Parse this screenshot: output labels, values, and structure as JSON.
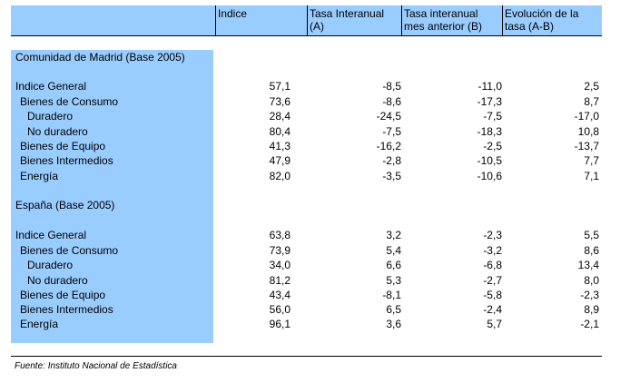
{
  "header": {
    "col1": "Indice",
    "col2": "Tasa Interanual (A)",
    "col3": "Tasa interanual mes anterior (B)",
    "col4": "Evolución de la tasa (A-B)"
  },
  "sections": [
    {
      "title": "Comunidad de Madrid (Base 2005)",
      "rows": [
        {
          "label": "Indice General",
          "v1": "57,1",
          "v2": "-8,5",
          "v3": "-11,0",
          "v4": "2,5"
        },
        {
          "label": "Bienes de Consumo",
          "v1": "73,6",
          "v2": "-8,6",
          "v3": "-17,3",
          "v4": "8,7"
        },
        {
          "label": "Duradero",
          "v1": "28,4",
          "v2": "-24,5",
          "v3": "-7,5",
          "v4": "-17,0"
        },
        {
          "label": "No duradero",
          "v1": "80,4",
          "v2": "-7,5",
          "v3": "-18,3",
          "v4": "10,8"
        },
        {
          "label": "Bienes de Equipo",
          "v1": "41,3",
          "v2": "-16,2",
          "v3": "-2,5",
          "v4": "-13,7"
        },
        {
          "label": "Bienes Intermedios",
          "v1": "47,9",
          "v2": "-2,8",
          "v3": "-10,5",
          "v4": "7,7"
        },
        {
          "label": "Energía",
          "v1": "82,0",
          "v2": "-3,5",
          "v3": "-10,6",
          "v4": "7,1"
        }
      ]
    },
    {
      "title": "España (Base 2005)",
      "rows": [
        {
          "label": "Indice General",
          "v1": "63,8",
          "v2": "3,2",
          "v3": "-2,3",
          "v4": "5,5"
        },
        {
          "label": "Bienes de Consumo",
          "v1": "73,9",
          "v2": "5,4",
          "v3": "-3,2",
          "v4": "8,6"
        },
        {
          "label": "Duradero",
          "v1": "34,0",
          "v2": "6,6",
          "v3": "-6,8",
          "v4": "13,4"
        },
        {
          "label": "No duradero",
          "v1": "81,2",
          "v2": "5,3",
          "v3": "-2,7",
          "v4": "8,0"
        },
        {
          "label": "Bienes de Equipo",
          "v1": "43,4",
          "v2": "-8,1",
          "v3": "-5,8",
          "v4": "-2,3"
        },
        {
          "label": "Bienes Intermedios",
          "v1": "56,0",
          "v2": "6,5",
          "v3": "-2,4",
          "v4": "8,9"
        },
        {
          "label": "Energía",
          "v1": "96,1",
          "v2": "3,6",
          "v3": "5,7",
          "v4": "-2,1"
        }
      ]
    }
  ],
  "source": "Fuente: Instituto Nacional de Estadística"
}
